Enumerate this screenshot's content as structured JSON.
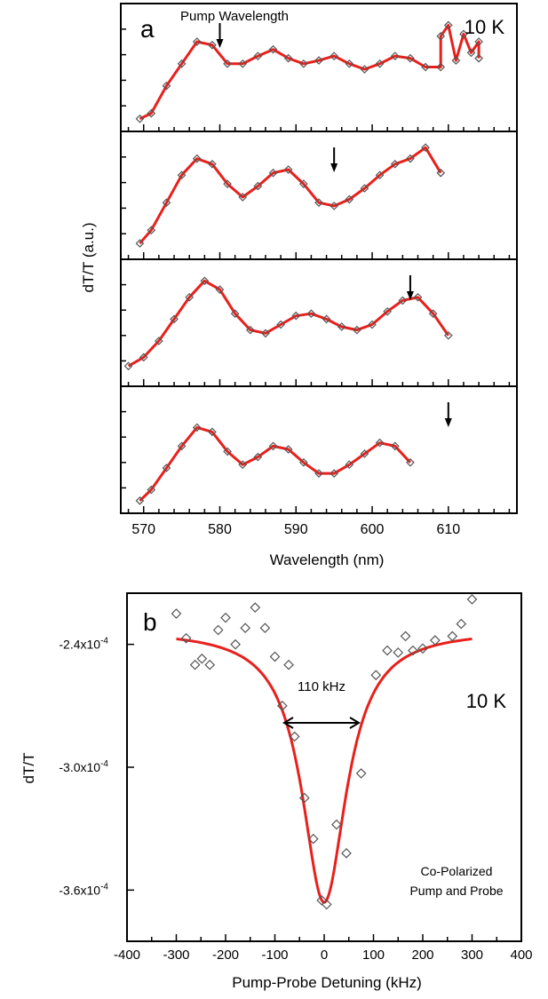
{
  "panel_a": {
    "panel_label": "a",
    "temperature_label": "10 K",
    "arrow_annotation": "Pump Wavelength",
    "ylabel": "dT/T (a.u.)",
    "xlabel": "Wavelength (nm)",
    "x_ticks": [
      "570",
      "580",
      "590",
      "600",
      "610"
    ]
  },
  "panel_b": {
    "panel_label": "b",
    "temperature_label": "10 K",
    "width_annotation": "110 kHz",
    "note_line1": "Co-Polarized",
    "note_line2": "Pump and Probe",
    "ylabel": "dT/T",
    "xlabel": "Pump-Probe Detuning (kHz)",
    "x_ticks": [
      "-400",
      "-300",
      "-200",
      "-100",
      "0",
      "100",
      "200",
      "300",
      "400"
    ],
    "y_ticks": [
      {
        "mantissa": "-2.4x10",
        "exp": "-4",
        "value": -0.00024
      },
      {
        "mantissa": "-3.0x10",
        "exp": "-4",
        "value": -0.0003
      },
      {
        "mantissa": "-3.6x10",
        "exp": "-4",
        "value": -0.00036
      }
    ]
  },
  "colors": {
    "fit": "#e8201c",
    "data_marker": "#555555",
    "axes": "#000000"
  },
  "chart_data": [
    {
      "type": "scatter",
      "title": "",
      "xlabel": "Wavelength (nm)",
      "ylabel": "dT/T (a.u.)",
      "xlim": [
        567,
        619
      ],
      "series": [
        {
          "values": [
            0.05,
            0.1,
            0.35,
            0.55,
            0.75,
            0.72,
            0.55,
            0.55,
            0.62,
            0.68,
            0.6,
            0.55,
            0.58,
            0.62,
            0.55,
            0.5,
            0.55,
            0.62,
            0.6,
            0.52,
            0.52,
            0.58,
            0.65,
            0.75,
            0.82,
            0.9,
            0.8,
            0.6
          ],
          "x": [
            569.5,
            571,
            573,
            575,
            577,
            579,
            581,
            583,
            585,
            587,
            589,
            591,
            593,
            595,
            597,
            599,
            601,
            603,
            605,
            607,
            609,
            611,
            613,
            614,
            612,
            610,
            609,
            614
          ],
          "pump_wavelength_nm": 580
        },
        {
          "values": [
            0.08,
            0.2,
            0.45,
            0.7,
            0.85,
            0.8,
            0.62,
            0.5,
            0.6,
            0.72,
            0.75,
            0.62,
            0.45,
            0.42,
            0.48,
            0.58,
            0.7,
            0.8,
            0.85,
            0.95,
            0.72
          ],
          "x": [
            569.5,
            571,
            573,
            575,
            577,
            579,
            581,
            583,
            585,
            587,
            589,
            591,
            593,
            595,
            597,
            599,
            601,
            603,
            605,
            607,
            609
          ],
          "pump_wavelength_nm": 595
        },
        {
          "values": [
            0.12,
            0.2,
            0.35,
            0.55,
            0.75,
            0.9,
            0.82,
            0.6,
            0.45,
            0.42,
            0.5,
            0.58,
            0.6,
            0.55,
            0.48,
            0.45,
            0.5,
            0.62,
            0.72,
            0.75,
            0.6,
            0.4
          ],
          "x": [
            568,
            570,
            572,
            574,
            576,
            578,
            580,
            582,
            584,
            586,
            588,
            590,
            592,
            594,
            596,
            598,
            600,
            602,
            604,
            606,
            608,
            610
          ],
          "pump_wavelength_nm": 605
        },
        {
          "values": [
            0.05,
            0.15,
            0.35,
            0.55,
            0.72,
            0.68,
            0.5,
            0.38,
            0.45,
            0.55,
            0.52,
            0.4,
            0.3,
            0.3,
            0.38,
            0.48,
            0.58,
            0.55,
            0.4
          ],
          "x": [
            569.5,
            571,
            573,
            575,
            577,
            579,
            581,
            583,
            585,
            587,
            589,
            591,
            593,
            595,
            597,
            599,
            601,
            603,
            605
          ],
          "pump_wavelength_nm": 610
        }
      ]
    },
    {
      "type": "scatter",
      "title": "",
      "xlabel": "Pump-Probe Detuning (kHz)",
      "ylabel": "dT/T",
      "xlim": [
        -400,
        400
      ],
      "ylim": [
        -0.000385,
        -0.000215
      ],
      "x": [
        -300,
        -280,
        -262,
        -248,
        -232,
        -215,
        -200,
        -180,
        -160,
        -140,
        -120,
        -100,
        -85,
        -72,
        -60,
        -40,
        -22,
        -5,
        5,
        25,
        45,
        75,
        105,
        128,
        150,
        165,
        180,
        200,
        225,
        260,
        278,
        300
      ],
      "y": [
        -0.000225,
        -0.000237,
        -0.00025,
        -0.000247,
        -0.00025,
        -0.000233,
        -0.000227,
        -0.00024,
        -0.000232,
        -0.000222,
        -0.000232,
        -0.000246,
        -0.00027,
        -0.00025,
        -0.000285,
        -0.000315,
        -0.000335,
        -0.000365,
        -0.000367,
        -0.000328,
        -0.000342,
        -0.000303,
        -0.000255,
        -0.000243,
        -0.000244,
        -0.000236,
        -0.000243,
        -0.000242,
        -0.000238,
        -0.000236,
        -0.00023,
        -0.000218
      ],
      "fit": {
        "type": "lorentzian",
        "center_khz": 0,
        "fwhm_khz": 110,
        "baseline": -0.000233,
        "minimum": -0.000366
      }
    }
  ]
}
